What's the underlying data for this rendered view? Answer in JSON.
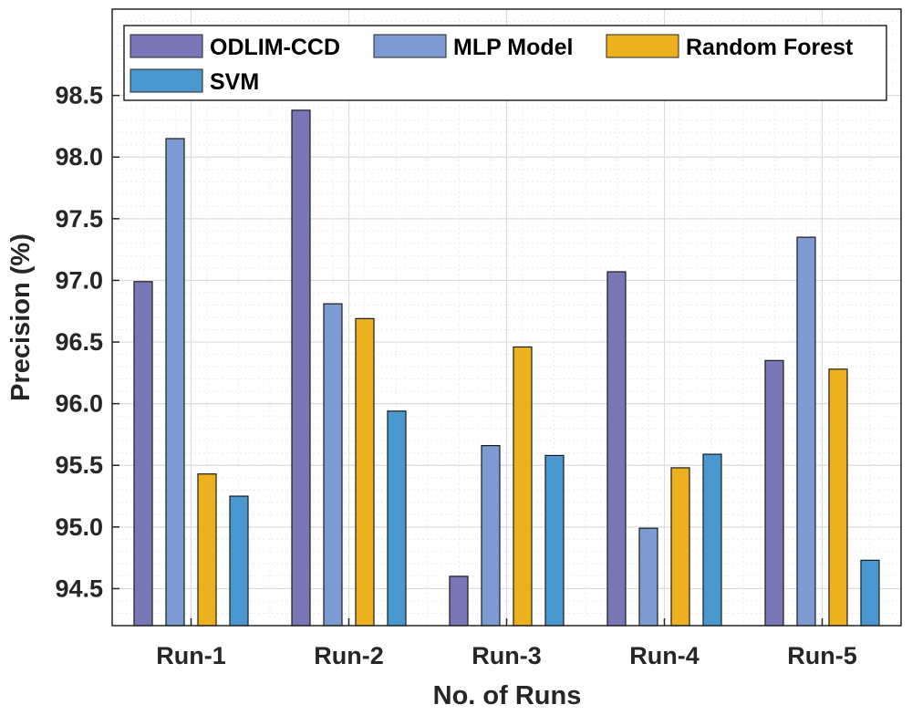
{
  "colors": {
    "ODLIM-CCD": "#7a77b9",
    "MLP Model": "#7d9bd3",
    "Random Forest": "#edb120",
    "SVM": "#4b98d1",
    "grid_major": "#dcdcdc",
    "grid_minor": "#ececec",
    "axis": "#262626"
  },
  "chart_data": {
    "type": "bar",
    "title": "",
    "xlabel": "No. of Runs",
    "ylabel": "Precision (%)",
    "categories": [
      "Run-1",
      "Run-2",
      "Run-3",
      "Run-4",
      "Run-5"
    ],
    "series": [
      {
        "name": "ODLIM-CCD",
        "values": [
          96.99,
          98.38,
          94.6,
          97.07,
          96.35
        ]
      },
      {
        "name": "MLP Model",
        "values": [
          98.15,
          96.81,
          95.66,
          94.99,
          97.35
        ]
      },
      {
        "name": "Random Forest",
        "values": [
          95.43,
          96.69,
          96.46,
          95.48,
          96.28
        ]
      },
      {
        "name": "SVM",
        "values": [
          95.25,
          95.94,
          95.58,
          95.59,
          94.73
        ]
      }
    ],
    "ylim": [
      94.2,
      99.2
    ],
    "yticks": [
      94.5,
      95.0,
      95.5,
      96.0,
      96.5,
      97.0,
      97.5,
      98.0,
      98.5
    ],
    "ytick_labels": [
      "94.5",
      "95.0",
      "95.5",
      "96.0",
      "96.5",
      "97.0",
      "97.5",
      "98.0",
      "98.5"
    ],
    "grid": true,
    "minor_grid": true,
    "legend_position": "top"
  }
}
